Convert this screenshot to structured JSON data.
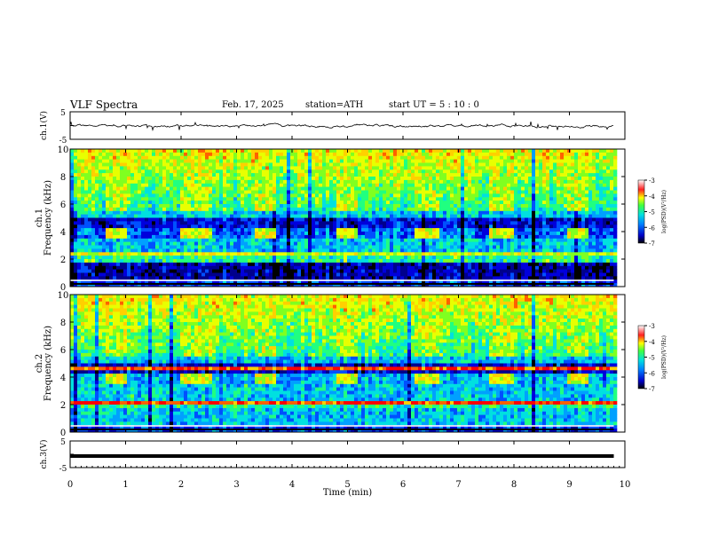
{
  "header": {
    "title": "VLF  Spectra",
    "date": "Feb. 17, 2025",
    "station": "station=ATH",
    "start": "start  UT  =   5  : 10 : 0"
  },
  "chart_data": [
    {
      "type": "line",
      "ylabel": "ch.1(V)",
      "ylim": [
        -5,
        5
      ],
      "yticks": [
        "5",
        "-5"
      ],
      "x_range_min": [
        0,
        9.8
      ],
      "description_level": "noisy waveform near 0 V"
    },
    {
      "type": "heatmap",
      "ylabel": "ch.1\nFrequency (kHz)",
      "ylim": [
        0,
        10
      ],
      "yticks": [
        "0",
        "2",
        "4",
        "6",
        "8",
        "10"
      ],
      "colorbar": {
        "label": "log(PSD)(V²/Hz)",
        "ticks": [
          "-3",
          "-4",
          "-5",
          "-6",
          "-7"
        ],
        "range": [
          -7,
          -3
        ]
      },
      "bursts_min": [
        [
          0.6,
          1.0
        ],
        [
          1.95,
          2.5
        ],
        [
          3.3,
          3.65
        ],
        [
          4.75,
          5.15
        ],
        [
          6.2,
          6.6
        ],
        [
          7.55,
          7.95
        ],
        [
          8.9,
          9.3
        ]
      ]
    },
    {
      "type": "heatmap",
      "ylabel": "ch.2\nFrequency (kHz)",
      "ylim": [
        0,
        10
      ],
      "yticks": [
        "0",
        "2",
        "4",
        "6",
        "8",
        "10"
      ],
      "colorbar": {
        "label": "log(PSD)(V²/Hz)",
        "ticks": [
          "-3",
          "-4",
          "-5",
          "-6",
          "-7"
        ],
        "range": [
          -7,
          -3
        ]
      },
      "bursts_min": [
        [
          0.6,
          1.0
        ],
        [
          1.95,
          2.5
        ],
        [
          3.3,
          3.65
        ],
        [
          4.75,
          5.15
        ],
        [
          6.2,
          6.6
        ],
        [
          7.55,
          7.95
        ],
        [
          8.9,
          9.3
        ]
      ]
    },
    {
      "type": "line",
      "ylabel": "ch.3(V)",
      "ylim": [
        -5,
        5
      ],
      "yticks": [
        "5",
        "-5"
      ],
      "x_range_min": [
        0,
        9.8
      ],
      "constant_value": -0.8
    }
  ],
  "xaxis": {
    "label": "Time  (min)",
    "ticks": [
      "0",
      "1",
      "2",
      "3",
      "4",
      "5",
      "6",
      "7",
      "8",
      "9",
      "10"
    ],
    "range": [
      0,
      10
    ]
  }
}
